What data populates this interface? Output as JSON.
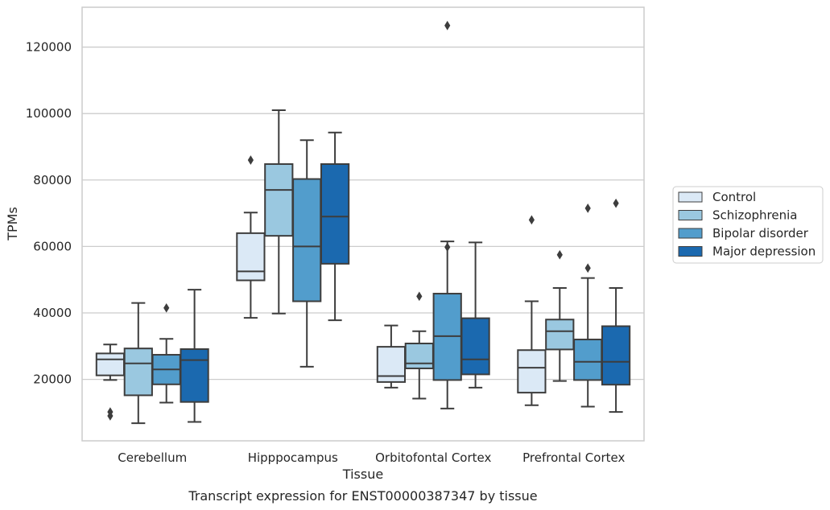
{
  "chart_data": {
    "type": "box",
    "caption": "Transcript expression for ENST00000387347 by tissue",
    "xlabel": "Tissue",
    "ylabel": "TPMs",
    "ylim": [
      1500,
      132000
    ],
    "yticks": [
      20000,
      40000,
      60000,
      80000,
      100000,
      120000
    ],
    "grid": "horizontal",
    "legend_position": "right",
    "categories": [
      "Cerebellum",
      "Hipppocampus",
      "Orbitofontal Cortex",
      "Prefrontal Cortex"
    ],
    "series": [
      {
        "name": "Control",
        "color": "#dbe9f6",
        "boxes": [
          {
            "whislo": 19800,
            "q1": 21200,
            "med": 26000,
            "q3": 27800,
            "whishi": 30500,
            "fliers": [
              10200,
              9000
            ]
          },
          {
            "whislo": 38500,
            "q1": 49800,
            "med": 52500,
            "q3": 64000,
            "whishi": 70200,
            "fliers": [
              86000
            ]
          },
          {
            "whislo": 17500,
            "q1": 19200,
            "med": 21000,
            "q3": 29800,
            "whishi": 36200,
            "fliers": []
          },
          {
            "whislo": 12200,
            "q1": 16000,
            "med": 23500,
            "q3": 28800,
            "whishi": 43500,
            "fliers": [
              68000
            ]
          }
        ]
      },
      {
        "name": "Schizophrenia",
        "color": "#9ac8e0",
        "boxes": [
          {
            "whislo": 6800,
            "q1": 15200,
            "med": 24800,
            "q3": 29300,
            "whishi": 43000,
            "fliers": []
          },
          {
            "whislo": 39800,
            "q1": 63200,
            "med": 77000,
            "q3": 84800,
            "whishi": 101000,
            "fliers": []
          },
          {
            "whislo": 14200,
            "q1": 23300,
            "med": 24800,
            "q3": 30800,
            "whishi": 34500,
            "fliers": [
              45000
            ]
          },
          {
            "whislo": 19500,
            "q1": 29000,
            "med": 34500,
            "q3": 38000,
            "whishi": 47500,
            "fliers": [
              57500
            ]
          }
        ]
      },
      {
        "name": "Bipolar disorder",
        "color": "#529dcc",
        "boxes": [
          {
            "whislo": 13000,
            "q1": 18500,
            "med": 23000,
            "q3": 27400,
            "whishi": 32200,
            "fliers": [
              41500
            ]
          },
          {
            "whislo": 23800,
            "q1": 43500,
            "med": 60000,
            "q3": 80300,
            "whishi": 92000,
            "fliers": []
          },
          {
            "whislo": 11200,
            "q1": 19800,
            "med": 33000,
            "q3": 45800,
            "whishi": 61500,
            "fliers": [
              59800,
              126500
            ]
          },
          {
            "whislo": 11800,
            "q1": 19800,
            "med": 25300,
            "q3": 32000,
            "whishi": 50500,
            "fliers": [
              53500,
              71500
            ]
          }
        ]
      },
      {
        "name": "Major depression",
        "color": "#1b69af",
        "boxes": [
          {
            "whislo": 7200,
            "q1": 13200,
            "med": 25800,
            "q3": 29100,
            "whishi": 47000,
            "fliers": []
          },
          {
            "whislo": 37800,
            "q1": 54800,
            "med": 69000,
            "q3": 84800,
            "whishi": 94300,
            "fliers": []
          },
          {
            "whislo": 17500,
            "q1": 21500,
            "med": 26000,
            "q3": 38400,
            "whishi": 61200,
            "fliers": []
          },
          {
            "whislo": 10200,
            "q1": 18400,
            "med": 25300,
            "q3": 36000,
            "whishi": 47500,
            "fliers": [
              73000
            ]
          }
        ]
      }
    ]
  }
}
